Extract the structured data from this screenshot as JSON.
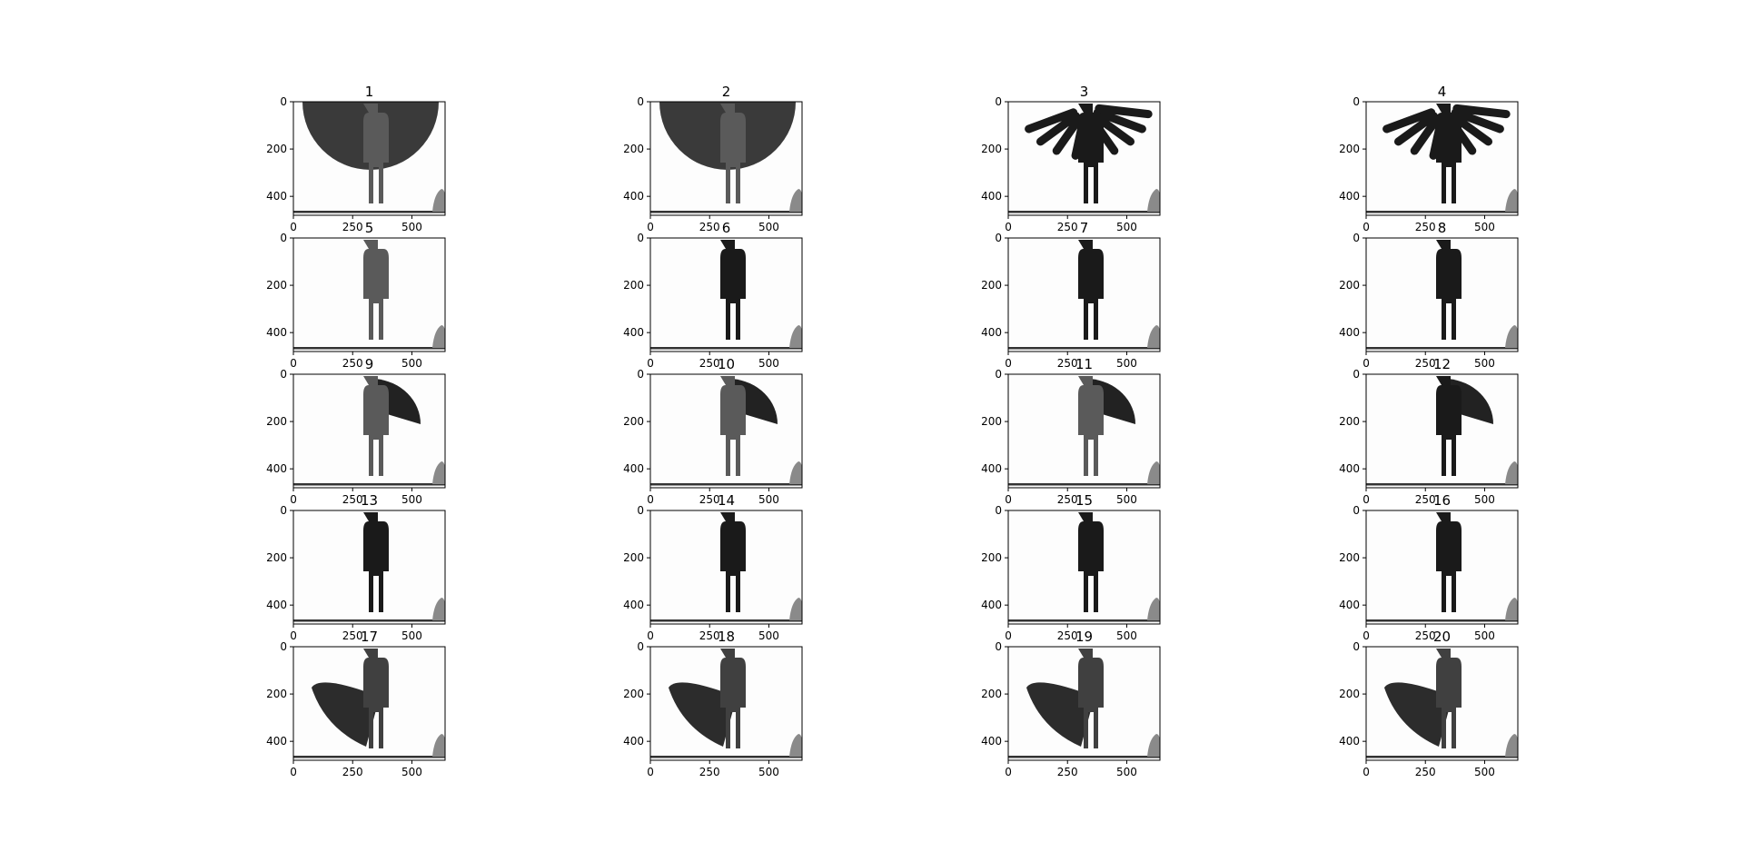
{
  "figure": {
    "panel_titles": [
      "1",
      "2",
      "3",
      "4",
      "5",
      "6",
      "7",
      "8",
      "9",
      "10",
      "11",
      "12",
      "13",
      "14",
      "15",
      "16",
      "17",
      "18",
      "19",
      "20"
    ],
    "x_ticks": [
      "0",
      "250",
      "500"
    ],
    "y_ticks": [
      "0",
      "200",
      "400"
    ],
    "image_colormap": "grayscale",
    "background_color": "#fdfdfd",
    "depth_colors": {
      "near": "#1a1a1a",
      "mid": "#404040",
      "person": "#5a5a5a",
      "far": "#8a8a8a"
    }
  }
}
